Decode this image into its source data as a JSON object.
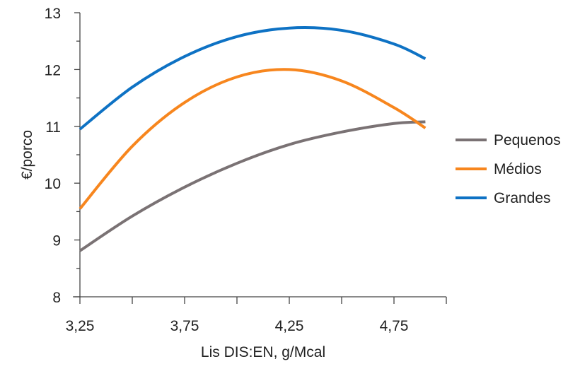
{
  "chart_data": {
    "type": "line",
    "title": "",
    "xlabel": "Lis DIS:EN, g/Mcal",
    "ylabel": "€/porco",
    "xlim": [
      3.25,
      5.0
    ],
    "ylim": [
      8,
      13
    ],
    "x_ticks": [
      3.25,
      3.75,
      4.25,
      4.75
    ],
    "x_tick_labels": [
      "3,25",
      "3,75",
      "4,25",
      "4,75"
    ],
    "x_minor_ticks": [
      3.5,
      4.0,
      4.5,
      5.0
    ],
    "y_ticks": [
      8,
      9,
      10,
      11,
      12,
      13
    ],
    "y_tick_labels": [
      "8",
      "9",
      "10",
      "11",
      "12",
      "13"
    ],
    "grid": false,
    "legend_position": "right",
    "x": [
      3.25,
      3.5,
      3.75,
      4.0,
      4.25,
      4.5,
      4.75,
      4.9
    ],
    "series": [
      {
        "name": "Pequenos",
        "color": "#7a7274",
        "values": [
          8.81,
          9.42,
          9.93,
          10.35,
          10.68,
          10.9,
          11.05,
          11.08
        ]
      },
      {
        "name": "Médios",
        "color": "#f7861e",
        "values": [
          9.55,
          10.65,
          11.42,
          11.87,
          12.0,
          11.8,
          11.33,
          10.97
        ]
      },
      {
        "name": "Grandes",
        "color": "#0e72c4",
        "values": [
          10.95,
          11.69,
          12.23,
          12.58,
          12.73,
          12.69,
          12.45,
          12.19
        ]
      }
    ]
  }
}
